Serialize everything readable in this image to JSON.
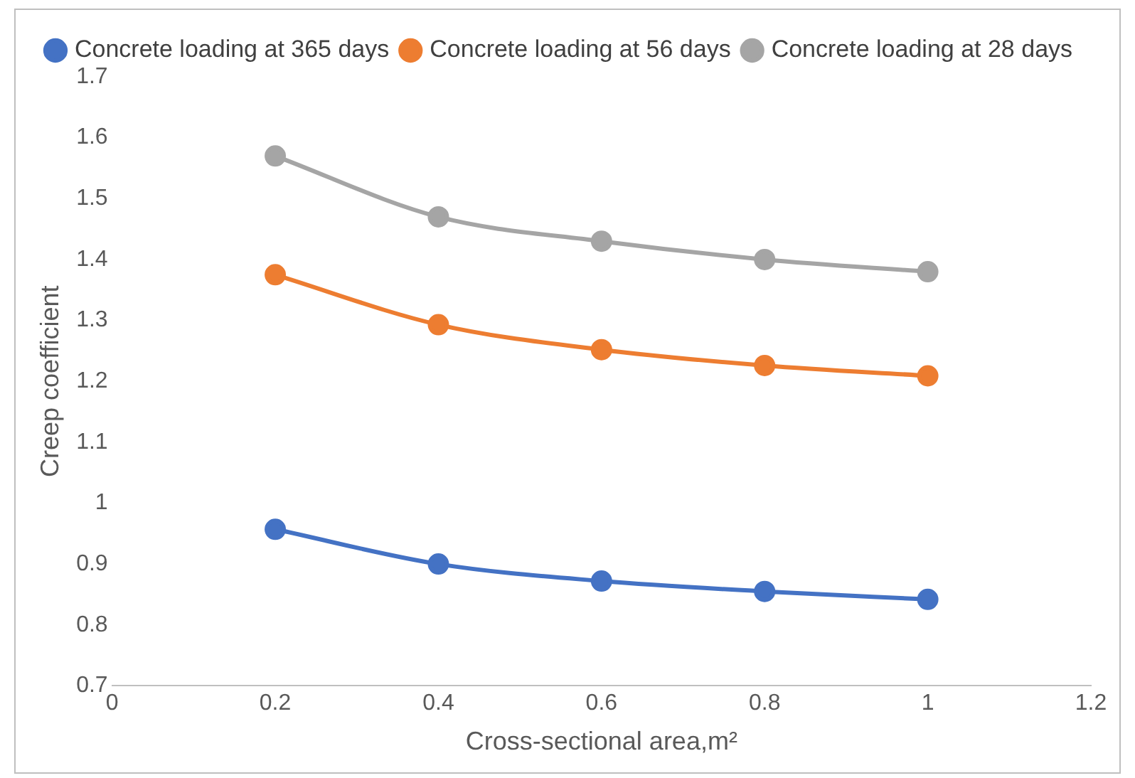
{
  "chart_data": {
    "type": "line",
    "xlabel": "Cross-sectional area,m²",
    "ylabel": "Creep coefficient",
    "xlim": [
      0,
      1.2
    ],
    "xticks": [
      0,
      0.2,
      0.4,
      0.6,
      0.8,
      1,
      1.2
    ],
    "ylim": [
      0.7,
      1.7
    ],
    "yticks": [
      0.7,
      0.8,
      0.9,
      1,
      1.1,
      1.2,
      1.3,
      1.4,
      1.5,
      1.6,
      1.7
    ],
    "x": [
      0.2,
      0.4,
      0.6,
      0.8,
      1
    ],
    "grid": false,
    "legend": "top",
    "marker": "circle",
    "line_style": "solid",
    "series": [
      {
        "name": "Concrete loading at 365 days",
        "color": "#4472c4",
        "values": [
          0.957,
          0.9,
          0.872,
          0.855,
          0.842
        ]
      },
      {
        "name": "Concrete loading at 56 days",
        "color": "#ed7d31",
        "values": [
          1.375,
          1.293,
          1.252,
          1.226,
          1.209
        ]
      },
      {
        "name": "Concrete loading at 28 days",
        "color": "#a5a5a5",
        "values": [
          1.57,
          1.47,
          1.43,
          1.4,
          1.38
        ]
      }
    ]
  }
}
